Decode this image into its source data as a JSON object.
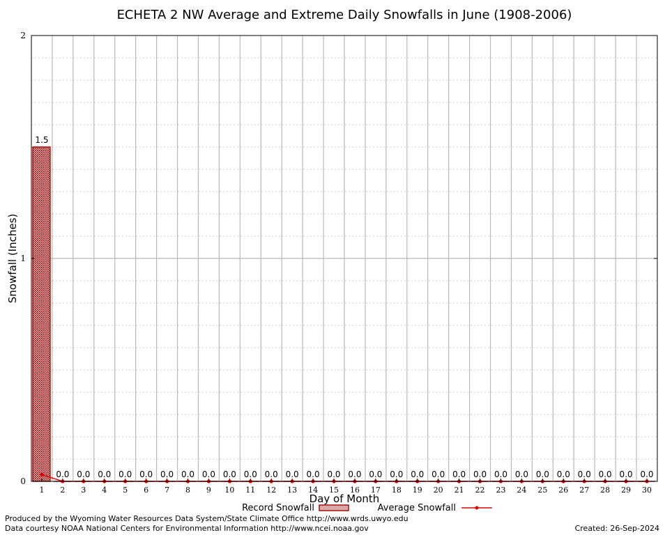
{
  "chart_data": {
    "type": "bar",
    "title": "ECHETA 2 NW Average and Extreme Daily Snowfalls in June (1908-2006)",
    "xlabel": "Day of Month",
    "ylabel": "Snowfall (Inches)",
    "ylim": [
      0,
      2
    ],
    "yticks": [
      "0",
      "1",
      "2"
    ],
    "categories": [
      "1",
      "2",
      "3",
      "4",
      "5",
      "6",
      "7",
      "8",
      "9",
      "10",
      "11",
      "12",
      "13",
      "14",
      "15",
      "16",
      "17",
      "18",
      "19",
      "20",
      "21",
      "22",
      "23",
      "24",
      "25",
      "26",
      "27",
      "28",
      "29",
      "30"
    ],
    "series": [
      {
        "name": "Record Snowfall",
        "kind": "bar",
        "color": "#a01010",
        "values": [
          1.5,
          0,
          0,
          0,
          0,
          0,
          0,
          0,
          0,
          0,
          0,
          0,
          0,
          0,
          0,
          0,
          0,
          0,
          0,
          0,
          0,
          0,
          0,
          0,
          0,
          0,
          0,
          0,
          0,
          0
        ],
        "labels": [
          "1.5",
          "0.0",
          "0.0",
          "0.0",
          "0.0",
          "0.0",
          "0.0",
          "0.0",
          "0.0",
          "0.0",
          "0.0",
          "0.0",
          "0.0",
          "0.0",
          "0.0",
          "0.0",
          "0.0",
          "0.0",
          "0.0",
          "0.0",
          "0.0",
          "0.0",
          "0.0",
          "0.0",
          "0.0",
          "0.0",
          "0.0",
          "0.0",
          "0.0",
          "0.0"
        ]
      },
      {
        "name": "Average Snowfall",
        "kind": "line",
        "color": "#e00000",
        "values": [
          0.03,
          0,
          0,
          0,
          0,
          0,
          0,
          0,
          0,
          0,
          0,
          0,
          0,
          0,
          0,
          0,
          0,
          0,
          0,
          0,
          0,
          0,
          0,
          0,
          0,
          0,
          0,
          0,
          0,
          0
        ]
      }
    ],
    "grid": true,
    "legend": "bottom-center"
  },
  "footer": {
    "produced_by": "Produced by the Wyoming Water Resources Data System/State Climate Office http://www.wrds.uwyo.edu",
    "data_courtesy": "Data courtesy NOAA National Centers for Environmental Information http://www.ncei.noaa.gov",
    "created": "Created:  26-Sep-2024"
  }
}
